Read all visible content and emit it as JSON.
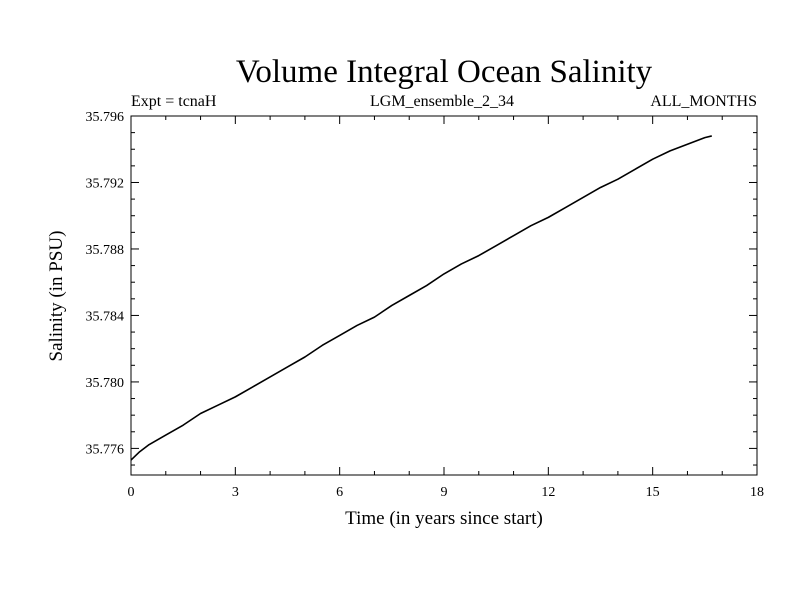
{
  "chart_data": {
    "type": "line",
    "title": "Volume Integral Ocean Salinity",
    "subtitle_left": "Expt = tcnaH",
    "subtitle_center": "LGM_ensemble_2_34",
    "subtitle_right": "ALL_MONTHS",
    "xlabel": "Time (in years since start)",
    "ylabel": "Salinity (in PSU)",
    "xlim": [
      0,
      18
    ],
    "ylim": [
      35.7744,
      35.796
    ],
    "x_ticks": [
      0,
      3,
      6,
      9,
      12,
      15,
      18
    ],
    "x_tick_labels": [
      "0",
      "3",
      "6",
      "9",
      "12",
      "15",
      "18"
    ],
    "y_ticks": [
      35.776,
      35.78,
      35.784,
      35.788,
      35.792,
      35.796
    ],
    "y_tick_labels": [
      "35.776",
      "35.780",
      "35.784",
      "35.788",
      "35.792",
      "35.796"
    ],
    "grid": false,
    "series": [
      {
        "name": "Salinity",
        "color": "#000000",
        "x": [
          0.0,
          0.1,
          0.25,
          0.5,
          0.75,
          1.0,
          1.5,
          2.0,
          2.5,
          3.0,
          3.5,
          4.0,
          4.5,
          5.0,
          5.5,
          6.0,
          6.5,
          7.0,
          7.5,
          8.0,
          8.5,
          9.0,
          9.5,
          10.0,
          10.5,
          11.0,
          11.5,
          12.0,
          12.5,
          13.0,
          13.5,
          14.0,
          14.5,
          15.0,
          15.5,
          16.0,
          16.5,
          16.7
        ],
        "y": [
          35.7753,
          35.7755,
          35.7758,
          35.7762,
          35.7765,
          35.7768,
          35.7774,
          35.7781,
          35.7786,
          35.7791,
          35.7797,
          35.7803,
          35.7809,
          35.7815,
          35.7822,
          35.7828,
          35.7834,
          35.7839,
          35.7846,
          35.7852,
          35.7858,
          35.7865,
          35.7871,
          35.7876,
          35.7882,
          35.7888,
          35.7894,
          35.7899,
          35.7905,
          35.7911,
          35.7917,
          35.7922,
          35.7928,
          35.7934,
          35.7939,
          35.7943,
          35.7947,
          35.7948
        ]
      }
    ]
  }
}
